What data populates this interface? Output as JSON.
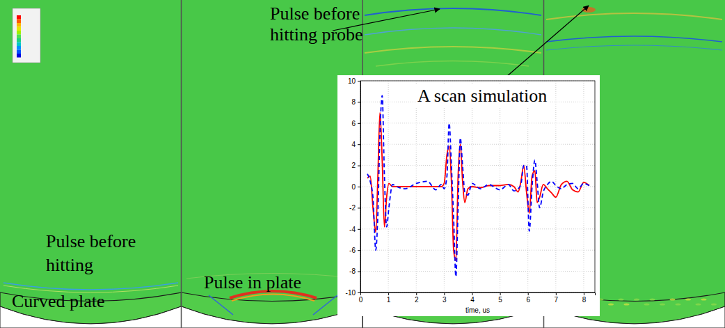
{
  "annotations": [
    {
      "lines": [
        "Pulse before",
        "hitting probe"
      ]
    },
    {
      "lines": [
        "Pulse before",
        "hitting"
      ]
    },
    {
      "lines": [
        "Curved plate"
      ]
    },
    {
      "lines": [
        "Pulse in plate"
      ]
    }
  ],
  "chart_data": {
    "type": "line",
    "title": "A scan simulation",
    "x_label": "time, us",
    "x": [
      0.25,
      0.35,
      0.45,
      0.55,
      0.62,
      0.7,
      0.78,
      0.86,
      0.94,
      1.02,
      1.15,
      1.3,
      1.6,
      2.0,
      2.4,
      2.7,
      2.9,
      3.0,
      3.1,
      3.18,
      3.26,
      3.34,
      3.42,
      3.5,
      3.58,
      3.66,
      3.74,
      3.85,
      4.0,
      4.3,
      4.6,
      5.0,
      5.3,
      5.5,
      5.65,
      5.75,
      5.85,
      5.95,
      6.05,
      6.15,
      6.25,
      6.33,
      6.42,
      6.55,
      6.7,
      6.85,
      7.0,
      7.2,
      7.4,
      7.6,
      7.8,
      8.0,
      8.2
    ],
    "series": [
      {
        "color": "#ff0000",
        "line_style": "solid",
        "values": [
          0.8,
          1.0,
          -2.0,
          -4.3,
          0.5,
          7.0,
          2.5,
          -3.8,
          -1.0,
          0.3,
          0,
          0,
          0,
          0,
          0,
          0,
          0,
          0.3,
          3.0,
          3.8,
          0.5,
          -6.0,
          -7.0,
          1.0,
          4.0,
          0.5,
          -1.5,
          -0.2,
          0,
          -0.1,
          0.1,
          0.1,
          0.2,
          0,
          -0.5,
          0.5,
          2.0,
          -0.5,
          -2.5,
          1.0,
          1.5,
          -1.5,
          -1.0,
          0.2,
          -0.2,
          -0.6,
          -1.0,
          0.2,
          0.5,
          -0.3,
          -0.5,
          0.4,
          0.1
        ]
      },
      {
        "color": "#0000ff",
        "line_style": "dashed",
        "values": [
          1.2,
          0.5,
          -1.0,
          -6.0,
          -3.0,
          5.0,
          8.6,
          1.0,
          -3.8,
          -2.0,
          0.2,
          0,
          -0.2,
          0.3,
          0.5,
          -0.3,
          0.2,
          -0.2,
          1.0,
          6.0,
          2.0,
          -3.0,
          -8.5,
          -2.0,
          4.6,
          2.0,
          -0.5,
          -0.8,
          0.3,
          -0.2,
          0.2,
          -0.3,
          0.2,
          -0.4,
          -0.2,
          0.2,
          2.0,
          2.0,
          -4.2,
          0,
          2.5,
          0.5,
          -2.0,
          -0.5,
          0.2,
          0.5,
          0.1,
          -0.2,
          0.2,
          0.3,
          -0.2,
          0.3,
          0.1
        ]
      }
    ],
    "xlim": [
      0,
      8.4
    ],
    "xticks": [
      0,
      1,
      2,
      3,
      4,
      5,
      6,
      7,
      8
    ],
    "ylim": [
      -10,
      10
    ],
    "yticks": [
      -10,
      -8,
      -6,
      -4,
      -2,
      0,
      2,
      4,
      6,
      8,
      10
    ],
    "grid": true
  }
}
